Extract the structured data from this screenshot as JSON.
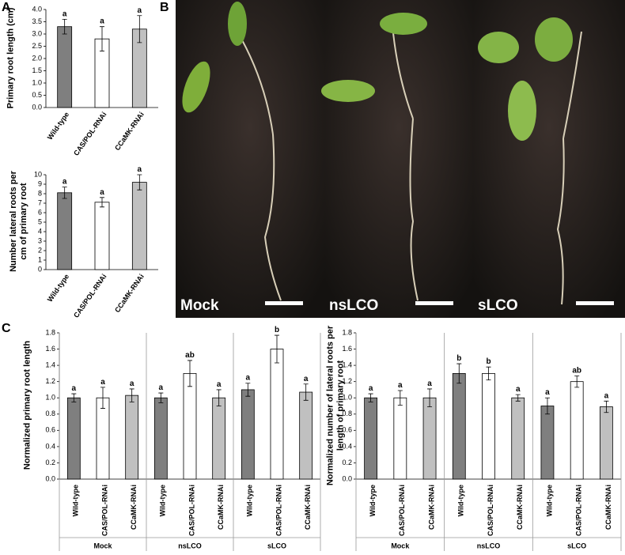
{
  "panel_labels": [
    "A",
    "B",
    "C"
  ],
  "photo_labels": [
    "Mock",
    "nsLCO",
    "sLCO"
  ],
  "chart_data": [
    {
      "type": "bar",
      "y_label": "Primary root length (cm)",
      "categories": [
        "Wild-type",
        "CAS/POL-RNAi",
        "CCaMK-RNAi"
      ],
      "values": [
        3.3,
        2.8,
        3.2
      ],
      "errors": [
        0.3,
        0.5,
        0.55
      ],
      "letters": [
        "a",
        "a",
        "a"
      ],
      "colors": [
        "#7f7f7f",
        "#ffffff",
        "#c0c0c0"
      ],
      "ylim": [
        0,
        4
      ],
      "yticks": [
        {
          "value": 0,
          "label": "0.0"
        },
        0.5,
        {
          "value": 1,
          "label": "1.0"
        },
        1.5,
        {
          "value": 2,
          "label": "2.0"
        },
        2.5,
        {
          "value": 3,
          "label": "3.0"
        },
        3.5,
        {
          "value": 4,
          "label": "4.0"
        }
      ]
    },
    {
      "type": "bar",
      "y_label": "Number lateral roots per cm of primary root",
      "categories": [
        "Wild-type",
        "CAS/POL-RNAi",
        "CCaMK-RNAi"
      ],
      "values": [
        8.1,
        7.1,
        9.2
      ],
      "errors": [
        0.6,
        0.5,
        0.8
      ],
      "letters": [
        "a",
        "a",
        "a"
      ],
      "colors": [
        "#7f7f7f",
        "#ffffff",
        "#c0c0c0"
      ],
      "ylim": [
        0,
        10
      ],
      "yticks": [
        0,
        1,
        2,
        3,
        4,
        5,
        6,
        7,
        8,
        9,
        10
      ]
    },
    {
      "type": "bar",
      "y_label": "Normalized primary root length",
      "categories": [
        "Wild-type",
        "CAS/POL-RNAi",
        "CCaMK-RNAi",
        "Wild-type",
        "CAS/POL-RNAi",
        "CCaMK-RNAi",
        "Wild-type",
        "CAS/POL-RNAi",
        "CCaMK-RNAi"
      ],
      "groups": [
        "Mock",
        "nsLCO",
        "sLCO"
      ],
      "values": [
        1.0,
        1.0,
        1.03,
        1.0,
        1.3,
        1.0,
        1.1,
        1.6,
        1.07
      ],
      "errors": [
        0.05,
        0.13,
        0.08,
        0.06,
        0.16,
        0.1,
        0.08,
        0.17,
        0.1
      ],
      "letters": [
        "a",
        "a",
        "a",
        "a",
        "ab",
        "a",
        "a",
        "b",
        "a"
      ],
      "colors": [
        "#7f7f7f",
        "#ffffff",
        "#c0c0c0",
        "#7f7f7f",
        "#ffffff",
        "#c0c0c0",
        "#7f7f7f",
        "#ffffff",
        "#c0c0c0"
      ],
      "ylim": [
        0,
        1.8
      ],
      "yticks": [
        {
          "value": 0,
          "label": "0.0"
        },
        0.2,
        0.4,
        0.6,
        0.8,
        {
          "value": 1,
          "label": "1.0"
        },
        1.2,
        1.4,
        1.6,
        1.8
      ]
    },
    {
      "type": "bar",
      "y_label": "Normalized number of lateral roots per length of primary root",
      "categories": [
        "Wild-type",
        "CAS/POL-RNAi",
        "CCaMK-RNAi",
        "Wild-type",
        "CAS/POL-RNAi",
        "CCaMK-RNAi",
        "Wild-type",
        "CAS/POL-RNAi",
        "CCaMK-RNAi"
      ],
      "groups": [
        "Mock",
        "nsLCO",
        "sLCO"
      ],
      "values": [
        1.0,
        1.0,
        1.0,
        1.3,
        1.3,
        1.0,
        0.9,
        1.2,
        0.89
      ],
      "errors": [
        0.05,
        0.09,
        0.11,
        0.12,
        0.08,
        0.04,
        0.1,
        0.07,
        0.07
      ],
      "letters": [
        "a",
        "a",
        "a",
        "b",
        "b",
        "a",
        "a",
        "ab",
        "a"
      ],
      "colors": [
        "#7f7f7f",
        "#ffffff",
        "#c0c0c0",
        "#7f7f7f",
        "#ffffff",
        "#c0c0c0",
        "#7f7f7f",
        "#ffffff",
        "#c0c0c0"
      ],
      "ylim": [
        0,
        1.8
      ],
      "yticks": [
        {
          "value": 0,
          "label": "0.0"
        },
        0.2,
        0.4,
        0.6,
        0.8,
        {
          "value": 1,
          "label": "1.0"
        },
        1.2,
        1.4,
        1.6,
        1.8
      ]
    }
  ]
}
